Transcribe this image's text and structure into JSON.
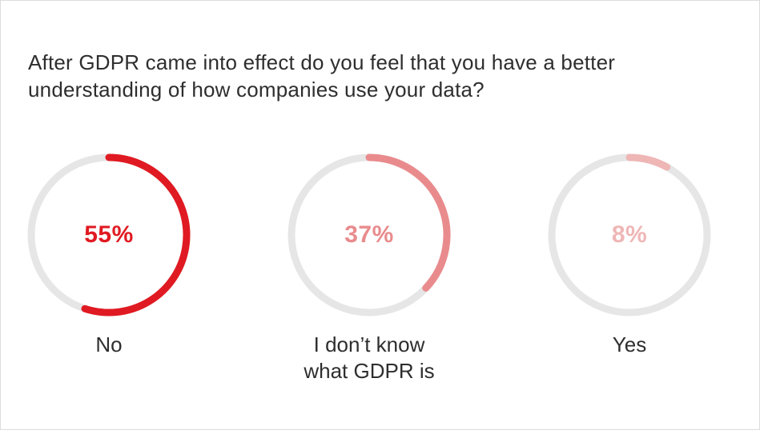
{
  "chart_data": {
    "type": "pie",
    "title": "After GDPR came into effect do you feel that you have a better understanding of how companies use your data?",
    "unit": "%",
    "track_color": "#e6e6e6",
    "items": [
      {
        "label": "No",
        "value": 55,
        "display": "55%",
        "color": "#e01a22"
      },
      {
        "label": "I don’t know\nwhat GDPR is",
        "value": 37,
        "display": "37%",
        "color": "#e98b8d"
      },
      {
        "label": "Yes",
        "value": 8,
        "display": "8%",
        "color": "#efb6b6"
      }
    ]
  }
}
